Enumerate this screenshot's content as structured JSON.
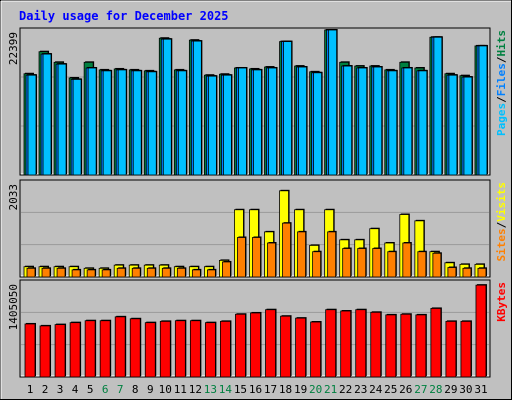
{
  "chart_data": [
    {
      "type": "bar",
      "title": "Daily usage for December 2025",
      "categories": [
        "1",
        "2",
        "3",
        "4",
        "5",
        "6",
        "7",
        "8",
        "9",
        "10",
        "11",
        "12",
        "13",
        "14",
        "15",
        "16",
        "17",
        "18",
        "19",
        "20",
        "21",
        "22",
        "23",
        "24",
        "25",
        "26",
        "27",
        "28",
        "29",
        "30",
        "31"
      ],
      "weekend_days": [
        "6",
        "7",
        "13",
        "14",
        "20",
        "21",
        "27",
        "28"
      ],
      "ymax_label": "22399",
      "ylim": [
        0,
        23168
      ],
      "legend": [
        "Pages",
        "/",
        "Files",
        "/",
        "Hits"
      ],
      "series": [
        {
          "name": "Hits",
          "color": "#008040",
          "values": [
            16176,
            19700,
            18004,
            15500,
            18004,
            16790,
            16944,
            16790,
            16637,
            21854,
            16790,
            21546,
            15947,
            16100,
            17097,
            16944,
            17250,
            21316,
            17404,
            16483,
            23168,
            18004,
            17404,
            17404,
            16790,
            18004,
            17097,
            22008,
            16176,
            15870,
            20624
          ]
        },
        {
          "name": "Files",
          "color": "#0080ff",
          "values": [
            15947,
            19317,
            17711,
            15272,
            17097,
            16637,
            16790,
            16637,
            16483,
            21700,
            16637,
            21393,
            15793,
            15947,
            17097,
            16790,
            17097,
            21316,
            17250,
            16330,
            23168,
            17404,
            17097,
            17251,
            16637,
            17097,
            16637,
            22008,
            15947,
            15640,
            20624
          ]
        },
        {
          "name": "Pages",
          "color": "#00c0ff",
          "values": [
            15947,
            19317,
            17711,
            15272,
            17097,
            16637,
            16790,
            16637,
            16483,
            21700,
            16637,
            21393,
            15793,
            15947,
            17097,
            16790,
            17097,
            21316,
            17250,
            16330,
            23168,
            17404,
            17097,
            17251,
            16637,
            17097,
            16637,
            22008,
            15947,
            15640,
            20624
          ]
        }
      ]
    },
    {
      "type": "bar",
      "ymax_label": "2033",
      "ylim": [
        0,
        2135
      ],
      "legend": [
        "Sites",
        "/",
        "Visits"
      ],
      "series": [
        {
          "name": "Visits",
          "color": "#ffff00",
          "values": [
            231,
            231,
            231,
            231,
            195,
            195,
            266,
            266,
            266,
            266,
            231,
            231,
            231,
            373,
            1511,
            1511,
            1014,
            1937,
            1511,
            710,
            1511,
            835,
            835,
            1085,
            764,
            1404,
            1262,
            568,
            319,
            284,
            284
          ]
        },
        {
          "name": "Sites",
          "color": "#ff8000",
          "values": [
            195,
            195,
            195,
            160,
            160,
            160,
            195,
            195,
            195,
            195,
            195,
            160,
            160,
            338,
            888,
            888,
            764,
            1210,
            1014,
            568,
            1014,
            640,
            640,
            640,
            568,
            764,
            568,
            533,
            213,
            195,
            195
          ]
        }
      ]
    },
    {
      "type": "bar",
      "ymax_label": "1405050",
      "ylim": [
        0,
        1468530
      ],
      "legend": [
        "KBytes"
      ],
      "series": [
        {
          "name": "KBytes",
          "color": "#ff0000",
          "values": [
            820000,
            790000,
            810000,
            840000,
            870000,
            870000,
            930000,
            900000,
            840000,
            860000,
            870000,
            870000,
            840000,
            860000,
            970000,
            990000,
            1040000,
            940000,
            910000,
            850000,
            1040000,
            1020000,
            1040000,
            1000000,
            960000,
            970000,
            960000,
            1060000,
            860000,
            860000,
            1420000
          ]
        }
      ]
    }
  ]
}
